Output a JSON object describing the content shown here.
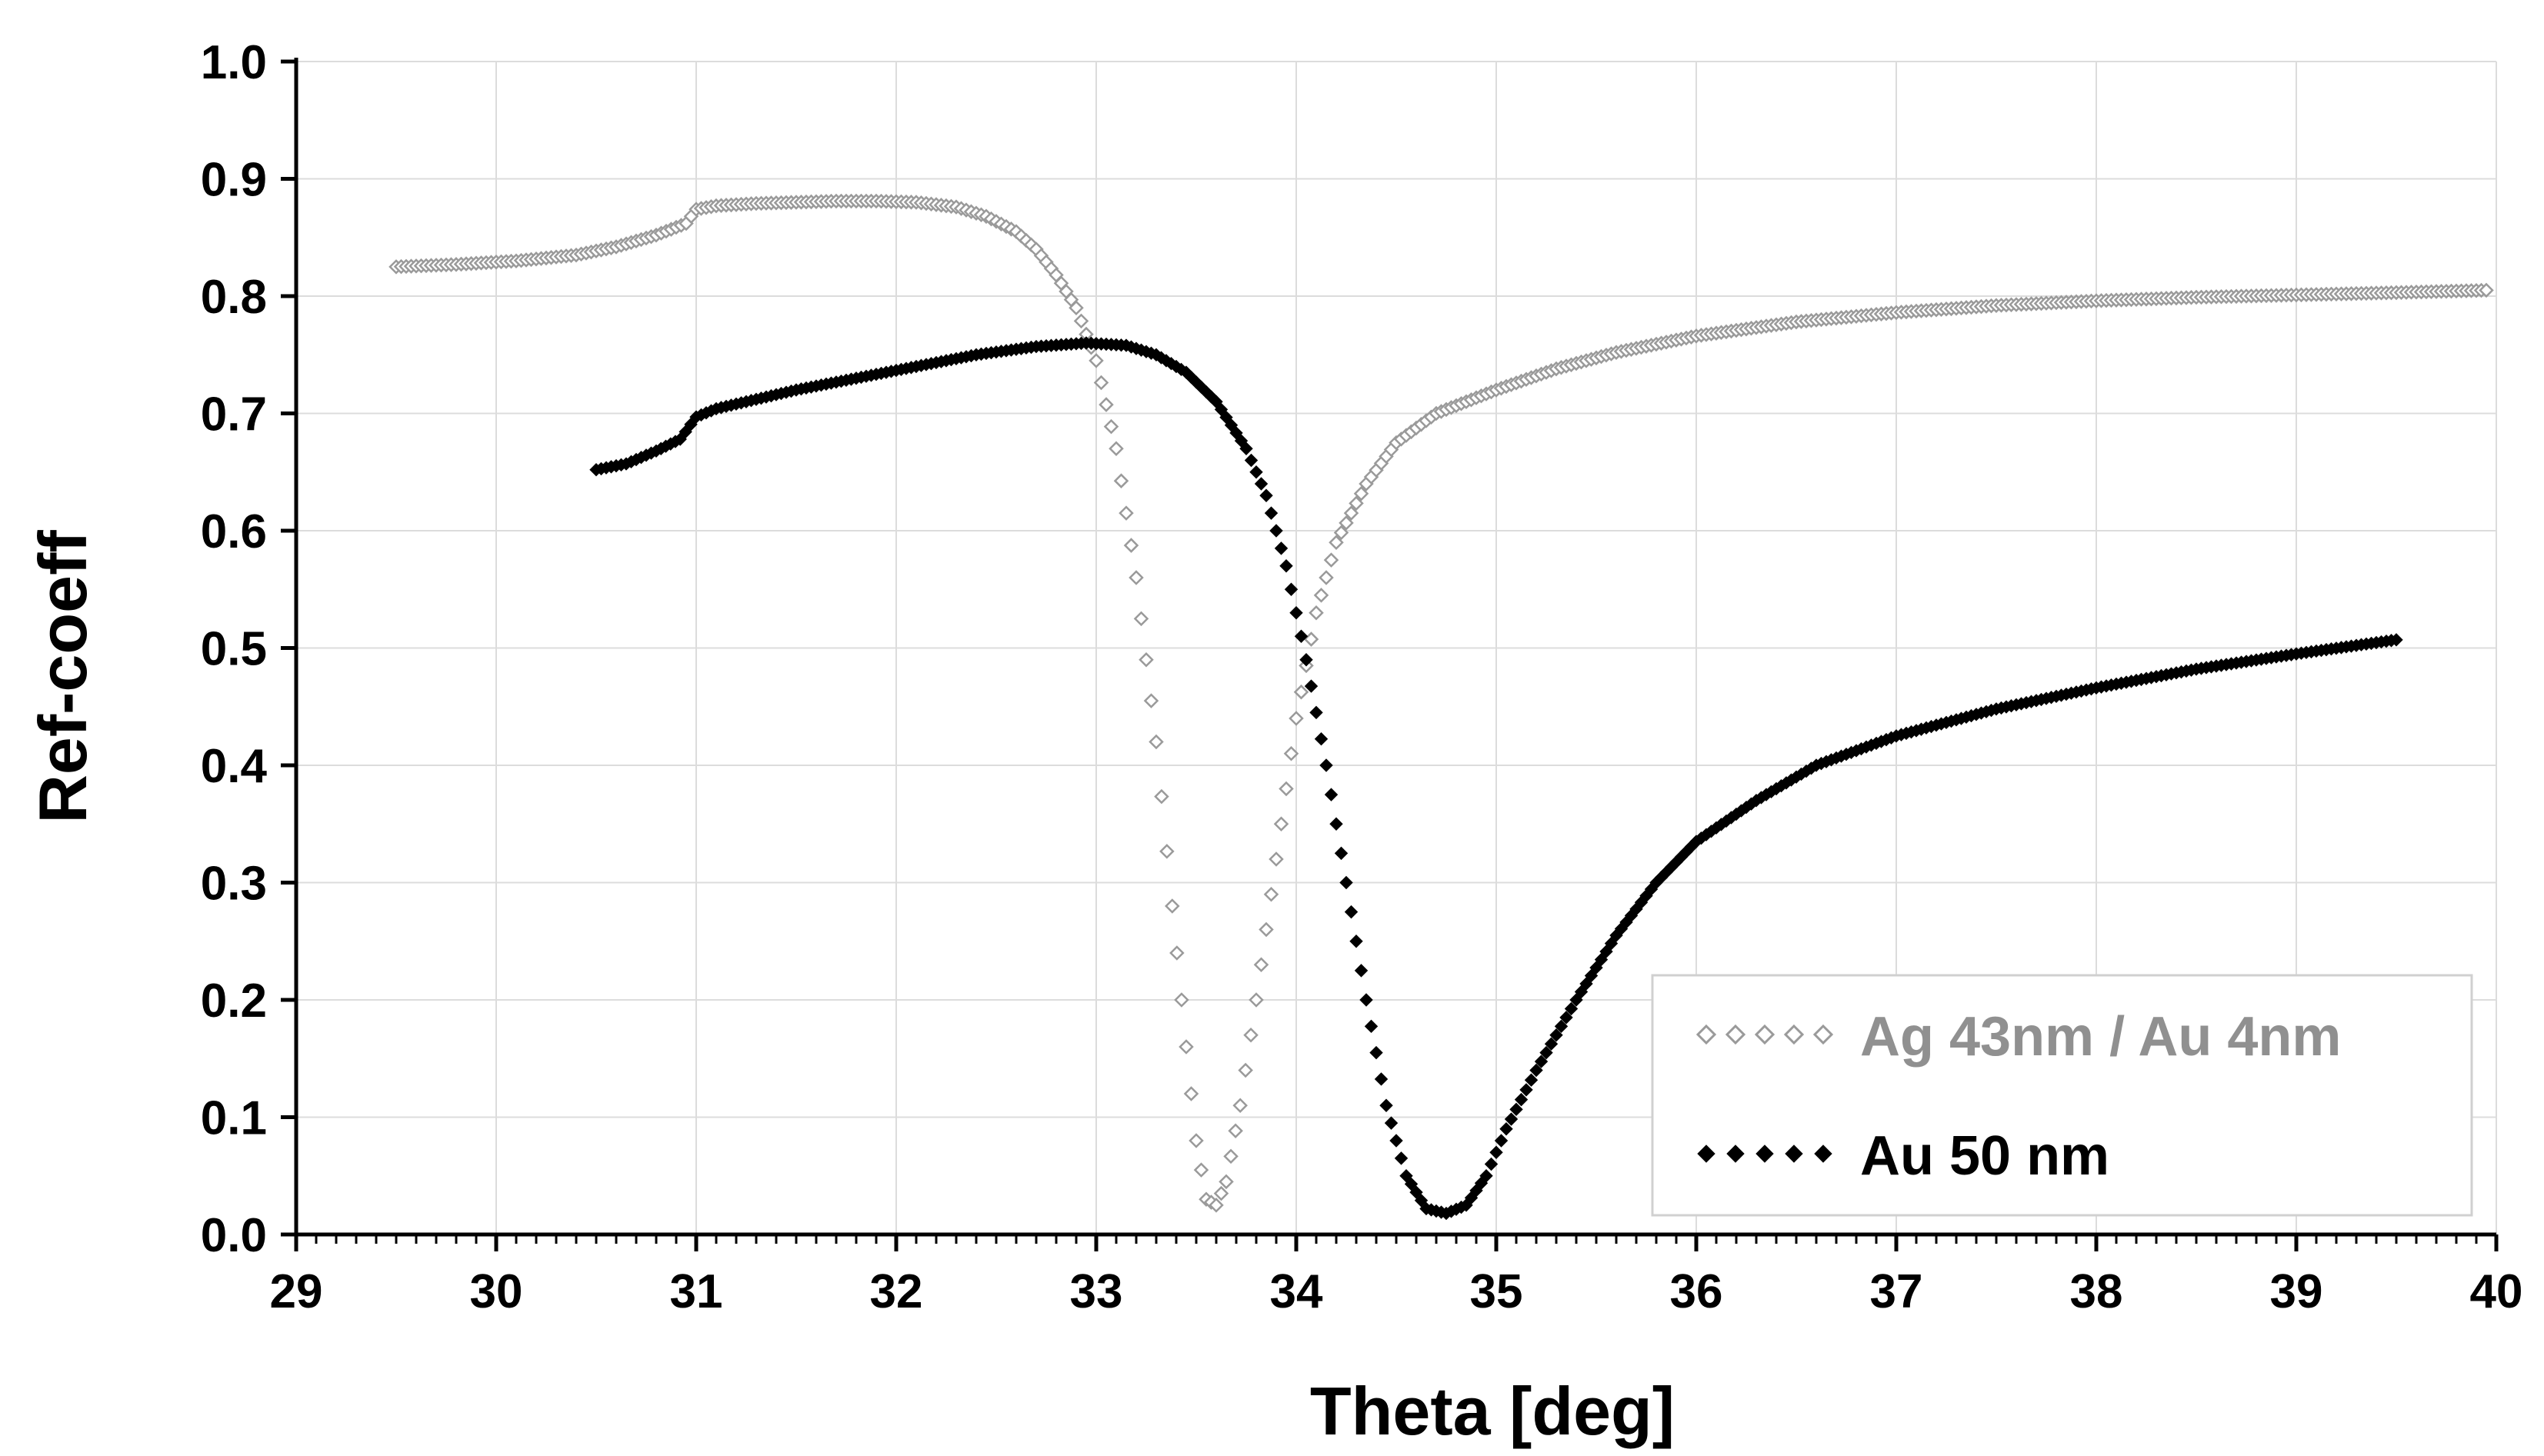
{
  "chart_data": {
    "type": "scatter",
    "title": "",
    "xlabel": "Theta [deg]",
    "ylabel": "Ref-coeff",
    "xlim": [
      29,
      40
    ],
    "ylim": [
      0.0,
      1.0
    ],
    "x_ticks": [
      "29",
      "30",
      "31",
      "32",
      "33",
      "34",
      "35",
      "36",
      "37",
      "38",
      "39",
      "40"
    ],
    "y_ticks": [
      "0.0",
      "0.1",
      "0.2",
      "0.3",
      "0.4",
      "0.5",
      "0.6",
      "0.7",
      "0.8",
      "0.9",
      "1.0"
    ],
    "grid": true,
    "legend_position": "bottom-right",
    "series": [
      {
        "name": "Ag 43nm / Au 4nm",
        "color": "#9a9a9a",
        "marker": "hollow-diamond",
        "points": [
          [
            29.5,
            0.825
          ],
          [
            29.8,
            0.827
          ],
          [
            30.1,
            0.83
          ],
          [
            30.4,
            0.835
          ],
          [
            30.6,
            0.842
          ],
          [
            30.8,
            0.852
          ],
          [
            30.95,
            0.862
          ],
          [
            31.0,
            0.874
          ],
          [
            31.1,
            0.877
          ],
          [
            31.3,
            0.879
          ],
          [
            31.5,
            0.88
          ],
          [
            31.7,
            0.881
          ],
          [
            31.9,
            0.881
          ],
          [
            32.1,
            0.88
          ],
          [
            32.3,
            0.876
          ],
          [
            32.45,
            0.868
          ],
          [
            32.6,
            0.855
          ],
          [
            32.7,
            0.84
          ],
          [
            32.8,
            0.818
          ],
          [
            32.9,
            0.79
          ],
          [
            33.0,
            0.745
          ],
          [
            33.1,
            0.67
          ],
          [
            33.2,
            0.56
          ],
          [
            33.3,
            0.42
          ],
          [
            33.38,
            0.28
          ],
          [
            33.45,
            0.16
          ],
          [
            33.5,
            0.08
          ],
          [
            33.55,
            0.03
          ],
          [
            33.6,
            0.025
          ],
          [
            33.65,
            0.045
          ],
          [
            33.72,
            0.11
          ],
          [
            33.8,
            0.2
          ],
          [
            33.9,
            0.32
          ],
          [
            34.0,
            0.44
          ],
          [
            34.1,
            0.53
          ],
          [
            34.2,
            0.59
          ],
          [
            34.35,
            0.64
          ],
          [
            34.5,
            0.675
          ],
          [
            34.7,
            0.7
          ],
          [
            35.0,
            0.72
          ],
          [
            35.3,
            0.738
          ],
          [
            35.6,
            0.752
          ],
          [
            36.0,
            0.766
          ],
          [
            36.5,
            0.778
          ],
          [
            37.0,
            0.786
          ],
          [
            37.5,
            0.792
          ],
          [
            38.0,
            0.796
          ],
          [
            38.5,
            0.799
          ],
          [
            39.0,
            0.801
          ],
          [
            39.5,
            0.803
          ],
          [
            39.95,
            0.805
          ]
        ]
      },
      {
        "name": "Au 50 nm",
        "color": "#000000",
        "marker": "filled-diamond",
        "points": [
          [
            30.5,
            0.652
          ],
          [
            30.65,
            0.657
          ],
          [
            30.8,
            0.668
          ],
          [
            30.92,
            0.678
          ],
          [
            31.0,
            0.697
          ],
          [
            31.1,
            0.704
          ],
          [
            31.3,
            0.712
          ],
          [
            31.5,
            0.72
          ],
          [
            31.8,
            0.73
          ],
          [
            32.1,
            0.74
          ],
          [
            32.4,
            0.75
          ],
          [
            32.7,
            0.757
          ],
          [
            32.95,
            0.76
          ],
          [
            33.15,
            0.758
          ],
          [
            33.3,
            0.75
          ],
          [
            33.45,
            0.735
          ],
          [
            33.6,
            0.71
          ],
          [
            33.75,
            0.67
          ],
          [
            33.85,
            0.63
          ],
          [
            33.95,
            0.57
          ],
          [
            34.05,
            0.49
          ],
          [
            34.15,
            0.4
          ],
          [
            34.25,
            0.3
          ],
          [
            34.35,
            0.2
          ],
          [
            34.45,
            0.11
          ],
          [
            34.55,
            0.05
          ],
          [
            34.65,
            0.022
          ],
          [
            34.75,
            0.018
          ],
          [
            34.85,
            0.025
          ],
          [
            34.95,
            0.05
          ],
          [
            35.05,
            0.09
          ],
          [
            35.2,
            0.14
          ],
          [
            35.4,
            0.2
          ],
          [
            35.6,
            0.255
          ],
          [
            35.8,
            0.3
          ],
          [
            36.0,
            0.335
          ],
          [
            36.3,
            0.37
          ],
          [
            36.6,
            0.4
          ],
          [
            37.0,
            0.425
          ],
          [
            37.5,
            0.448
          ],
          [
            38.0,
            0.466
          ],
          [
            38.5,
            0.482
          ],
          [
            39.0,
            0.495
          ],
          [
            39.5,
            0.507
          ]
        ]
      }
    ]
  }
}
